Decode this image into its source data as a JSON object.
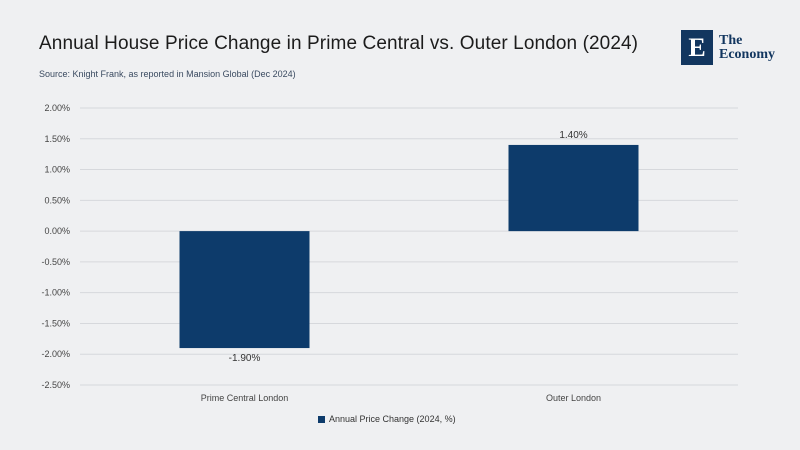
{
  "header": {
    "title": "Annual House Price Change in Prime Central vs. Outer London (2024)",
    "subtitle": "Source: Knight Frank, as reported in Mansion Global (Dec 2024)"
  },
  "logo": {
    "mark_letter": "E",
    "line1": "The",
    "line2": "Economy"
  },
  "colors": {
    "bar": "#0d3b6b",
    "grid": "#d6d8dc",
    "background": "#eff0f2",
    "brand": "#12365f"
  },
  "chart_data": {
    "type": "bar",
    "categories": [
      "Prime Central London",
      "Outer London"
    ],
    "series": [
      {
        "name": "Annual Price Change (2024, %)",
        "values": [
          -1.9,
          1.4
        ]
      }
    ],
    "data_labels": [
      "-1.90%",
      "1.40%"
    ],
    "ylim": [
      -2.5,
      2.0
    ],
    "y_ticks": [
      2.0,
      1.5,
      1.0,
      0.5,
      0.0,
      -0.5,
      -1.0,
      -1.5,
      -2.0,
      -2.5
    ],
    "y_tick_labels": [
      "2.00%",
      "1.50%",
      "1.00%",
      "0.50%",
      "0.00%",
      "-0.50%",
      "-1.00%",
      "-1.50%",
      "-2.00%",
      "-2.50%"
    ],
    "grid": true,
    "legend_position": "bottom-center",
    "title": "",
    "xlabel": "",
    "ylabel": ""
  }
}
